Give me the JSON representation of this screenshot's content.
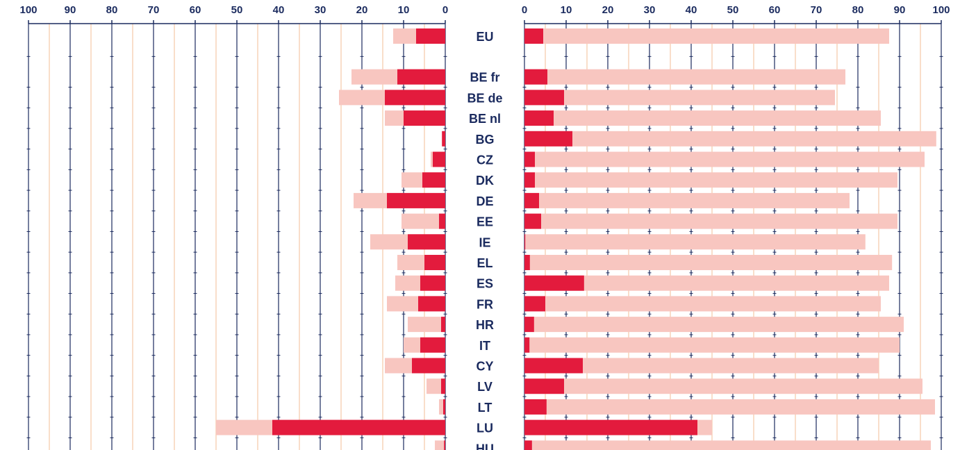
{
  "chart_data": {
    "type": "bar",
    "orientation": "horizontal",
    "layout": "back-to-back",
    "colors": {
      "dark": "#e31b3d",
      "light": "#f8c6c0",
      "major_grid": "#1a2a5e",
      "minor_grid": "#f5c9a6",
      "text": "#1a2a5e"
    },
    "categories": [
      "EU",
      "BE fr",
      "BE de",
      "BE nl",
      "BG",
      "CZ",
      "DK",
      "DE",
      "EE",
      "IE",
      "EL",
      "ES",
      "FR",
      "HR",
      "IT",
      "CY",
      "LV",
      "LT",
      "LU",
      "HU"
    ],
    "gap_after": [
      "EU"
    ],
    "left_panel": {
      "xlim": [
        0,
        100
      ],
      "reversed": true,
      "ticks": [
        "100",
        "90",
        "80",
        "70",
        "60",
        "50",
        "40",
        "30",
        "20",
        "10",
        "0"
      ],
      "series": [
        {
          "style": "light",
          "values": [
            12.5,
            22.5,
            25.5,
            14.5,
            0.5,
            3.5,
            10.5,
            22.0,
            10.5,
            18.0,
            11.5,
            12.0,
            14.0,
            9.0,
            10.0,
            14.5,
            4.5,
            1.5,
            55.0,
            2.5
          ]
        },
        {
          "style": "dark",
          "values": [
            7.0,
            11.5,
            14.5,
            10.0,
            0.8,
            3.0,
            5.5,
            14.0,
            1.5,
            9.0,
            5.0,
            6.0,
            6.5,
            1.0,
            6.0,
            8.0,
            1.0,
            0.5,
            41.5,
            0.3
          ]
        }
      ]
    },
    "right_panel": {
      "xlim": [
        0,
        100
      ],
      "ticks": [
        "0",
        "10",
        "20",
        "30",
        "40",
        "50",
        "60",
        "70",
        "80",
        "90",
        "100"
      ],
      "series": [
        {
          "style": "light",
          "values": [
            87.5,
            77.0,
            74.5,
            85.5,
            98.8,
            96.0,
            89.5,
            78.0,
            89.5,
            81.8,
            88.2,
            87.5,
            85.5,
            91.0,
            90.0,
            85.0,
            95.5,
            98.5,
            45.0,
            97.5
          ]
        },
        {
          "style": "dark",
          "values": [
            4.5,
            5.5,
            9.5,
            7.0,
            11.5,
            2.5,
            2.5,
            3.5,
            4.0,
            0.2,
            1.3,
            14.3,
            5.0,
            2.3,
            1.2,
            14.0,
            9.5,
            5.3,
            41.5,
            1.8
          ]
        }
      ]
    }
  }
}
